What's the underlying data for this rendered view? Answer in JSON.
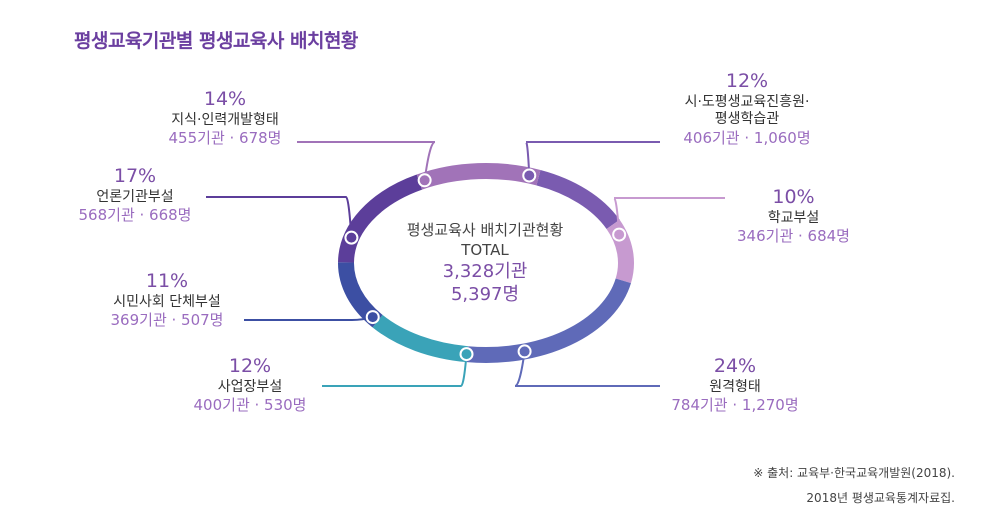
{
  "title": "평생교육기관별 평생교육사 배치현황",
  "center": {
    "line1": "평생교육사 배치기관현황",
    "line2": "TOTAL",
    "line3": "3,328기관",
    "line4": "5,397명"
  },
  "chart_data": {
    "type": "pie",
    "title": "평생교육기관별 평생교육사 배치현황",
    "total_label": "TOTAL",
    "total_institutions": "3,328기관",
    "total_persons": "5,397명",
    "slices": [
      {
        "name": "시·도평생교육진흥원·\n평생학습관",
        "percent": 12,
        "counts": "406기관 · 1,060명",
        "color": "#7a5bb0"
      },
      {
        "name": "학교부설",
        "percent": 10,
        "counts": "346기관 · 684명",
        "color": "#c79ad0"
      },
      {
        "name": "원격형태",
        "percent": 24,
        "counts": "784기관 · 1,270명",
        "color": "#5f6ab8"
      },
      {
        "name": "사업장부설",
        "percent": 12,
        "counts": "400기관 · 530명",
        "color": "#3aa3b8"
      },
      {
        "name": "시민사회 단체부설",
        "percent": 11,
        "counts": "369기관 · 507명",
        "color": "#3c4fa3"
      },
      {
        "name": "언론기관부설",
        "percent": 17,
        "counts": "568기관 · 668명",
        "color": "#5c3e9a"
      },
      {
        "name": "지식·인력개발형태",
        "percent": 14,
        "counts": "455기관 · 678명",
        "color": "#a173b8"
      }
    ]
  },
  "source": {
    "line1": "※ 출처: 교육부·한국교육개발원(2018).",
    "line2": "2018년 평생교육통계자료집."
  }
}
